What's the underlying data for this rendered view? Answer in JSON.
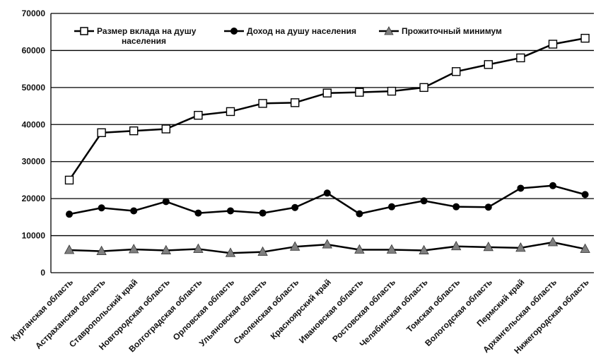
{
  "chart_data": {
    "type": "line",
    "title": "",
    "xlabel": "",
    "ylabel": "",
    "ylim": [
      0,
      70000
    ],
    "yticks": [
      0,
      10000,
      20000,
      30000,
      40000,
      50000,
      60000,
      70000
    ],
    "ytick_labels": [
      "0",
      "10000",
      "20000",
      "30000",
      "40000",
      "50000",
      "60000",
      "70000"
    ],
    "grid": "horizontal",
    "legend_position": "top",
    "categories": [
      "Курганская область",
      "Астраханская область",
      "Ставропольский край",
      "Новгородская область",
      "Волгоградская область",
      "Орловская область",
      "Ульяновская область",
      "Смоленская область",
      "Красноярский край",
      "Ивановская область",
      "Ростовская область",
      "Челябинская область",
      "Томская область",
      "Вологодская область",
      "Пермский край",
      "Архангельская область",
      "Нижегородская область"
    ],
    "series": [
      {
        "name": "Размер вклада на душу населения",
        "marker": "square-open",
        "color": "#000000",
        "values": [
          25000,
          37800,
          38300,
          38800,
          42500,
          43500,
          45700,
          45900,
          48500,
          48700,
          49000,
          50000,
          54300,
          56200,
          58000,
          61700,
          63300
        ]
      },
      {
        "name": "Доход на душу населения",
        "marker": "circle-filled",
        "color": "#000000",
        "values": [
          15800,
          17500,
          16700,
          19200,
          16100,
          16700,
          16100,
          17600,
          21500,
          15900,
          17800,
          19400,
          17800,
          17700,
          22800,
          23500,
          21100
        ]
      },
      {
        "name": "Прожиточный минимум",
        "marker": "triangle-filled",
        "color": "#7f7f7f",
        "values": [
          6100,
          5800,
          6300,
          6000,
          6400,
          5300,
          5600,
          7000,
          7600,
          6200,
          6200,
          6000,
          7100,
          6900,
          6700,
          8200,
          6400
        ]
      }
    ],
    "legend_labels": {
      "s0_line1": "Размер вклада на душу",
      "s0_line2": "населения",
      "s1": "Доход на душу населения",
      "s2": "Прожиточный минимум"
    }
  }
}
